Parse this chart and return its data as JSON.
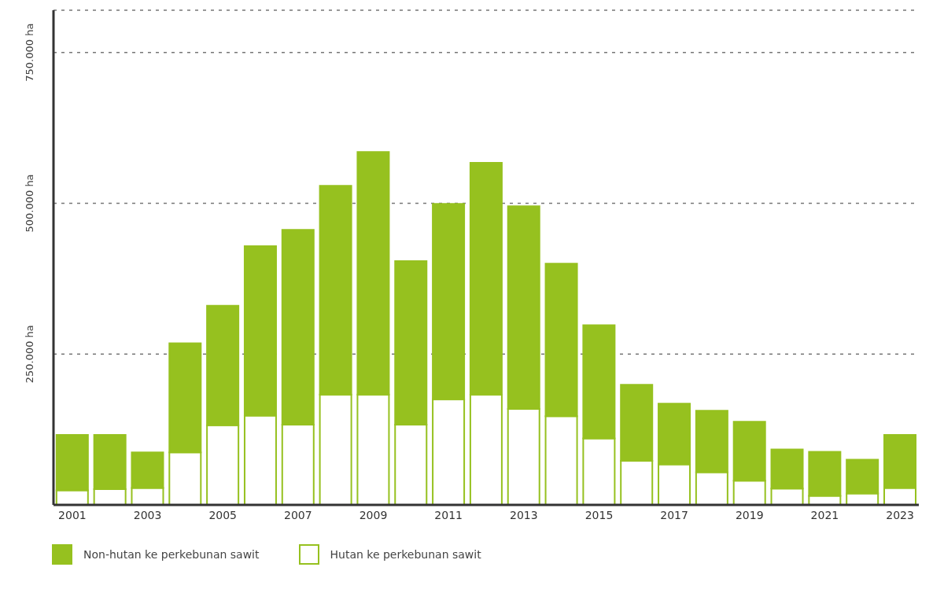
{
  "chart_data": {
    "type": "bar",
    "stacked": true,
    "categories": [
      "2001",
      null,
      "2003",
      null,
      "2005",
      null,
      "2007",
      null,
      "2009",
      null,
      "2011",
      null,
      "2013",
      null,
      "2015",
      null,
      "2017",
      null,
      "2019",
      null,
      "2021",
      null,
      "2023"
    ],
    "series": [
      {
        "name": "Hutan ke perkebunan sawit",
        "color": "#ffffff",
        "values": [
          24000,
          26000,
          28000,
          87000,
          132000,
          148000,
          133000,
          183000,
          183000,
          133000,
          175000,
          183000,
          159000,
          147000,
          110000,
          73000,
          67000,
          54000,
          40000,
          27000,
          15000,
          19000,
          28000
        ]
      },
      {
        "name": "Non-hutan ke perkebunan sawit",
        "color": "#96c11f",
        "values": [
          92000,
          90000,
          59000,
          181000,
          198000,
          281000,
          323000,
          346000,
          402000,
          271000,
          324000,
          384000,
          336000,
          253000,
          188000,
          126000,
          101000,
          102000,
          98000,
          65000,
          73000,
          56000,
          88000
        ]
      }
    ],
    "ylim": [
      0,
      820000
    ],
    "yticks": [
      {
        "value": 0,
        "label": null
      },
      {
        "value": 250000,
        "label": "250.000 ha"
      },
      {
        "value": 500000,
        "label": "500.000 ha"
      },
      {
        "value": 750000,
        "label": "750.000 ha"
      }
    ],
    "grid": "y",
    "legend": "bottom"
  }
}
